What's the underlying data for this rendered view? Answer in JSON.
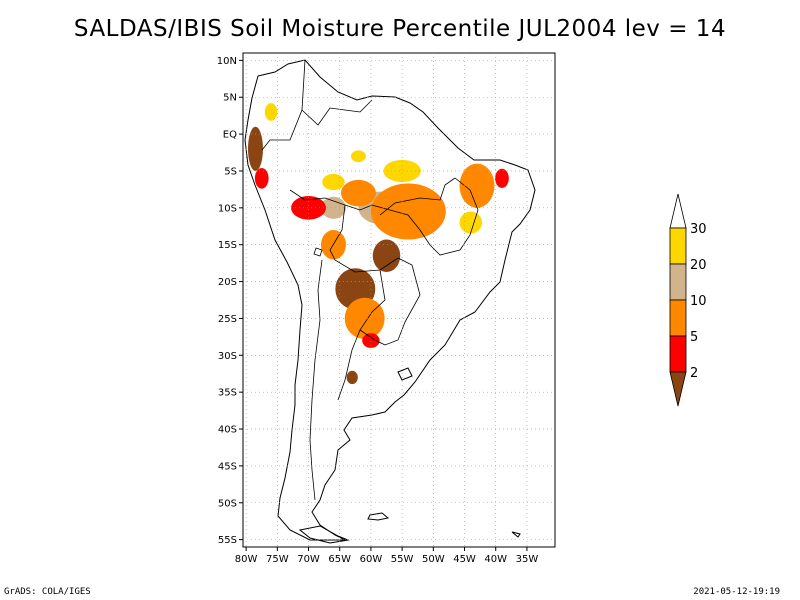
{
  "title": "SALDAS/IBIS Soil Moisture Percentile JUL2004 lev = 14",
  "map": {
    "lon_range": [
      -80.5,
      -30.5
    ],
    "lat_range": [
      -56,
      11
    ],
    "lat_labels": [
      "10N",
      "5N",
      "EQ",
      "5S",
      "10S",
      "15S",
      "20S",
      "25S",
      "30S",
      "35S",
      "40S",
      "45S",
      "50S",
      "55S"
    ],
    "lat_values": [
      10,
      5,
      0,
      -5,
      -10,
      -15,
      -20,
      -25,
      -30,
      -35,
      -40,
      -45,
      -50,
      -55
    ],
    "lon_labels": [
      "80W",
      "75W",
      "70W",
      "65W",
      "60W",
      "55W",
      "50W",
      "45W",
      "40W",
      "35W"
    ],
    "lon_values": [
      -80,
      -75,
      -70,
      -65,
      -60,
      -55,
      -50,
      -45,
      -40,
      -35
    ],
    "grid": true
  },
  "colorbar": {
    "labels": [
      "2",
      "5",
      "10",
      "20",
      "30"
    ],
    "colors": [
      "#8B4513",
      "#ff0000",
      "#ff8800",
      "#d2b48c",
      "#ffd700",
      "#ffffff"
    ]
  },
  "regions": [
    {
      "class": "brown",
      "color": "#8B4513",
      "lon": -57.5,
      "lat": -16.5,
      "rx": 2.2,
      "ry": 2.2
    },
    {
      "class": "brown",
      "color": "#8B4513",
      "lon": -62.5,
      "lat": -21,
      "rx": 3.2,
      "ry": 2.8
    },
    {
      "class": "brown",
      "color": "#8B4513",
      "lon": -63,
      "lat": -33,
      "rx": 0.9,
      "ry": 0.9
    },
    {
      "class": "brown",
      "color": "#8B4513",
      "lon": -78.5,
      "lat": -2,
      "rx": 1.2,
      "ry": 3
    },
    {
      "class": "tan",
      "color": "#d2b48c",
      "lon": -58.5,
      "lat": -10,
      "rx": 3.5,
      "ry": 2.2
    },
    {
      "class": "tan",
      "color": "#d2b48c",
      "lon": -66,
      "lat": -10,
      "rx": 2,
      "ry": 1.5
    },
    {
      "class": "orange",
      "color": "#ff8800",
      "lon": -54,
      "lat": -10.5,
      "rx": 6,
      "ry": 3.8
    },
    {
      "class": "orange",
      "color": "#ff8800",
      "lon": -62,
      "lat": -8,
      "rx": 2.8,
      "ry": 1.8
    },
    {
      "class": "orange",
      "color": "#ff8800",
      "lon": -43,
      "lat": -7,
      "rx": 2.8,
      "ry": 3
    },
    {
      "class": "orange",
      "color": "#ff8800",
      "lon": -61,
      "lat": -25,
      "rx": 3.2,
      "ry": 2.8
    },
    {
      "class": "orange",
      "color": "#ff8800",
      "lon": -66,
      "lat": -15,
      "rx": 2,
      "ry": 2
    },
    {
      "class": "red",
      "color": "#ff0000",
      "lon": -70,
      "lat": -10,
      "rx": 2.8,
      "ry": 1.6
    },
    {
      "class": "red",
      "color": "#ff0000",
      "lon": -60,
      "lat": -28,
      "rx": 1.4,
      "ry": 1
    },
    {
      "class": "red",
      "color": "#ff0000",
      "lon": -39,
      "lat": -6,
      "rx": 1.1,
      "ry": 1.3
    },
    {
      "class": "red",
      "color": "#ff0000",
      "lon": -77.5,
      "lat": -6,
      "rx": 1.1,
      "ry": 1.4
    },
    {
      "class": "yellow",
      "color": "#ffd700",
      "lon": -55,
      "lat": -5,
      "rx": 3,
      "ry": 1.5
    },
    {
      "class": "yellow",
      "color": "#ffd700",
      "lon": -44,
      "lat": -12,
      "rx": 1.8,
      "ry": 1.5
    },
    {
      "class": "yellow",
      "color": "#ffd700",
      "lon": -66,
      "lat": -6.5,
      "rx": 1.8,
      "ry": 1.1
    },
    {
      "class": "yellow",
      "color": "#ffd700",
      "lon": -62,
      "lat": -3,
      "rx": 1.2,
      "ry": 0.8
    },
    {
      "class": "yellow",
      "color": "#ffd700",
      "lon": -76,
      "lat": 3,
      "rx": 1,
      "ry": 1.2
    }
  ],
  "footer_left": "GrADS: COLA/IGES",
  "footer_right": "2021-05-12-19:19"
}
